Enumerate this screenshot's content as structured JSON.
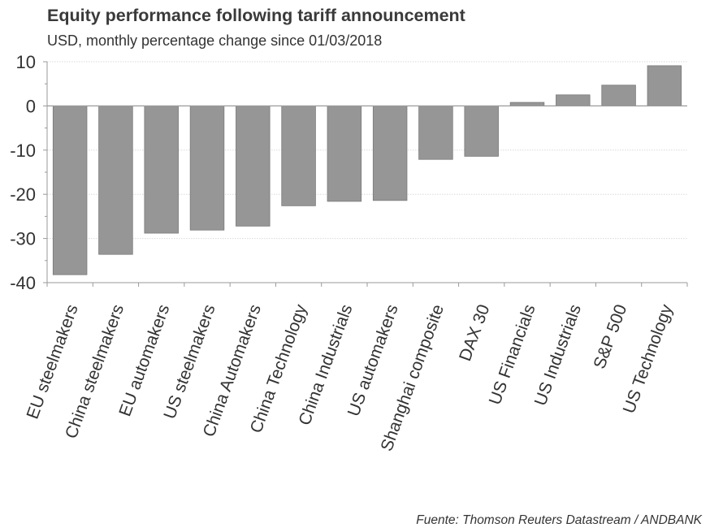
{
  "header": {
    "title": "Equity performance following tariff announcement",
    "subtitle": "USD, monthly percentage change since 01/03/2018"
  },
  "footer": {
    "source": "Fuente: Thomson Reuters Datastream / ANDBANK"
  },
  "colors": {
    "bar_fill": "#969696",
    "bar_stroke": "#7a7a7a",
    "axis": "#9a9a9a",
    "grid": "#d9d9d9",
    "text": "#333333"
  },
  "chart_data": {
    "type": "bar",
    "title": "Equity performance following tariff announcement",
    "subtitle": "USD, monthly percentage change since 01/03/2018",
    "categories": [
      "EU steelmakers",
      "China steelmakers",
      "EU automakers",
      "US steelmakers",
      "China Automakers",
      "China Technology",
      "China Industrials",
      "US automakers",
      "Shanghai composite",
      "DAX 30",
      "US Financials",
      "US Industrials",
      "S&P 500",
      "US Technology"
    ],
    "values": [
      -38.2,
      -33.6,
      -28.8,
      -28.1,
      -27.2,
      -22.6,
      -21.6,
      -21.4,
      -12.1,
      -11.4,
      0.8,
      2.5,
      4.7,
      9.1
    ],
    "ylim": [
      -40,
      10
    ],
    "yticks": [
      10,
      0,
      -10,
      -20,
      -30,
      -40
    ],
    "grid": true,
    "legend": "none"
  }
}
